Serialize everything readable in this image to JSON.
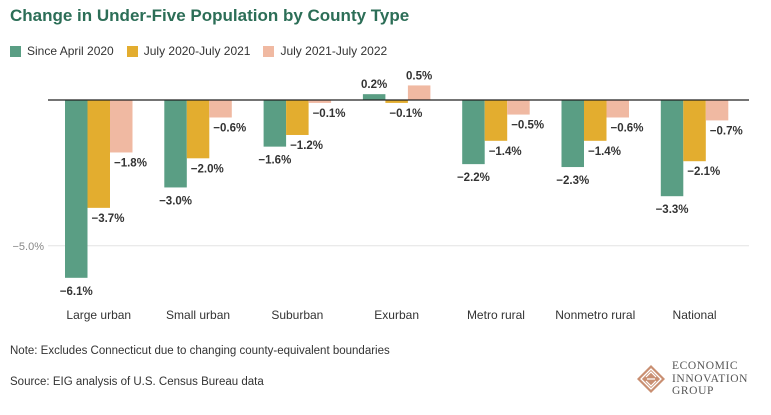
{
  "title": "Change in Under-Five Population by County Type",
  "note": "Note: Excludes Connecticut due to changing county-equivalent boundaries",
  "source": "Source: EIG analysis of U.S. Census Bureau data",
  "logo": {
    "icon": "eig-diamond-logo-icon",
    "lines": [
      "ECONOMIC",
      "INNOVATION",
      "GROUP"
    ]
  },
  "colors": {
    "title": "#2c6e57",
    "gridline": "#e4e4e4",
    "zero_line": "#222222"
  },
  "chart_data": {
    "type": "bar",
    "title": "Change in Under-Five Population by County Type",
    "categories": [
      "Large urban",
      "Small urban",
      "Suburban",
      "Exurban",
      "Metro rural",
      "Nonmetro rural",
      "National"
    ],
    "series": [
      {
        "name": "Since April 2020",
        "color": "#5a9e84",
        "values": [
          -6.1,
          -3.0,
          -1.6,
          0.2,
          -2.2,
          -2.3,
          -3.3
        ],
        "labels": [
          "−6.1%",
          "−3.0%",
          "−1.6%",
          "0.2%",
          "−2.2%",
          "−2.3%",
          "−3.3%"
        ]
      },
      {
        "name": "July 2020-July 2021",
        "color": "#e3ad2f",
        "values": [
          -3.7,
          -2.0,
          -1.2,
          -0.1,
          -1.4,
          -1.4,
          -2.1
        ],
        "labels": [
          "−3.7%",
          "−2.0%",
          "−1.2%",
          "−0.1%",
          "−1.4%",
          "−1.4%",
          "−2.1%"
        ]
      },
      {
        "name": "July 2021-July 2022",
        "color": "#f0b9a2",
        "values": [
          -1.8,
          -0.6,
          -0.1,
          0.5,
          -0.5,
          -0.6,
          -0.7
        ],
        "labels": [
          "−1.8%",
          "−0.6%",
          "−0.1%",
          "0.5%",
          "−0.5%",
          "−0.6%",
          "−0.7%"
        ]
      }
    ],
    "y_ticks": [
      {
        "value": -5.0,
        "label": "−5.0%"
      }
    ],
    "ylim": [
      -6.5,
      0.7
    ],
    "grid": true,
    "legend": "top-left"
  }
}
